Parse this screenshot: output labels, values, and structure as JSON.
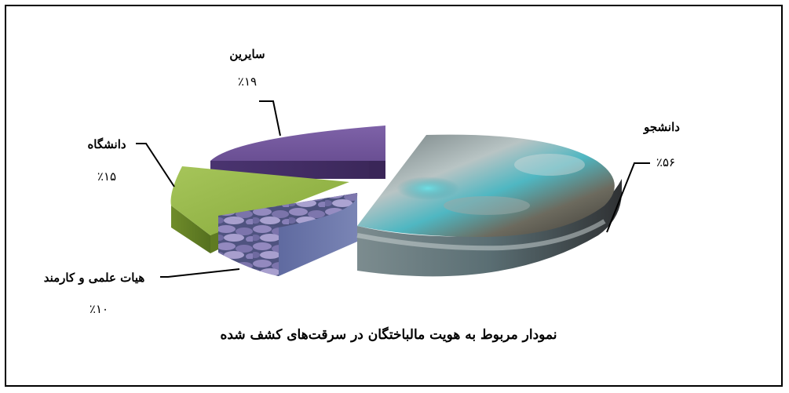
{
  "chart_data": {
    "type": "pie",
    "title": "نمودار مربوط به هویت مالباختگان در سرقت‌های کشف شده",
    "exploded_3d": true,
    "slices": [
      {
        "name": "دانشجو",
        "value": 56,
        "label": "٪۵۶",
        "color": "#5c8a8f"
      },
      {
        "name": "هیات علمی و کارمند",
        "value": 10,
        "label": "٪۱۰",
        "color": "#7a6fa6"
      },
      {
        "name": "دانشگاه",
        "value": 15,
        "label": "٪۱۵",
        "color": "#8aab3c"
      },
      {
        "name": "سایرین",
        "value": 19,
        "label": "٪۱۹",
        "color": "#6f5494"
      }
    ]
  }
}
